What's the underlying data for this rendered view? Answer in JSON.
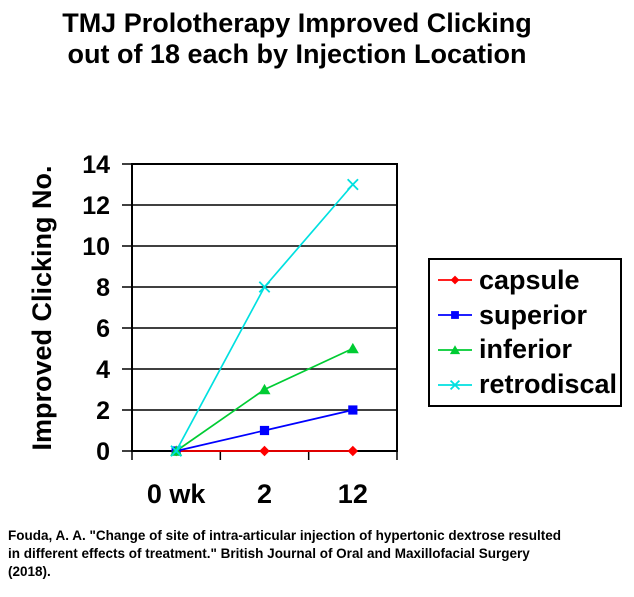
{
  "title": {
    "line1": "TMJ Prolotherapy Improved Clicking",
    "line2": "out of 18 each by Injection Location"
  },
  "chart_data": {
    "type": "line",
    "categories": [
      "0 wk",
      "2",
      "12"
    ],
    "series": [
      {
        "name": "capsule",
        "values": [
          0,
          0,
          0
        ],
        "color": "#FF0000",
        "marker": "diamond"
      },
      {
        "name": "superior",
        "values": [
          0,
          1,
          2
        ],
        "color": "#0000FF",
        "marker": "square"
      },
      {
        "name": "inferior",
        "values": [
          0,
          3,
          5
        ],
        "color": "#00CC33",
        "marker": "triangle"
      },
      {
        "name": "retrodiscal",
        "values": [
          0,
          8,
          13
        ],
        "color": "#00E0E0",
        "marker": "x"
      }
    ],
    "title": "TMJ Prolotherapy Improved Clicking out of 18 each by Injection Location",
    "xlabel": "",
    "ylabel": "Improved Clicking No.",
    "ylim": [
      0,
      14
    ],
    "y_ticks": [
      0,
      2,
      4,
      6,
      8,
      10,
      12,
      14
    ],
    "grid": true,
    "legend_position": "right",
    "gridline_color": "#000000",
    "axis_color": "#000000"
  },
  "citation": {
    "line1": "Fouda, A. A. \"Change of site of intra-articular injection of hypertonic dextrose resulted",
    "line2": "in different effects of treatment.\" British Journal of Oral and Maxillofacial Surgery",
    "line3": "(2018)."
  }
}
